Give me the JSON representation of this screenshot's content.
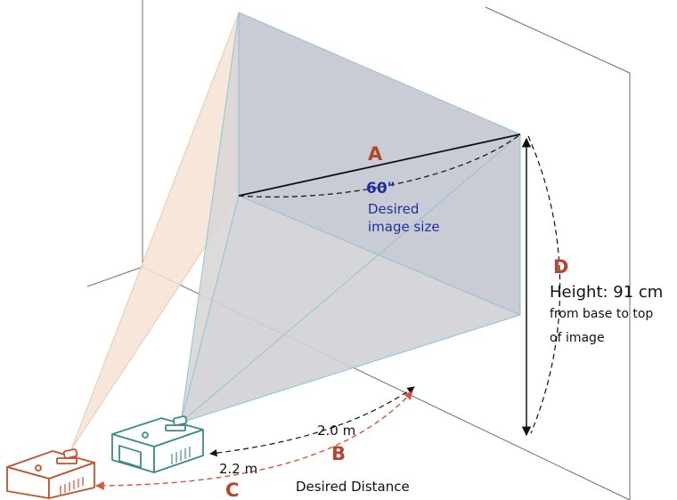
{
  "colors": {
    "screen_fill": "#c9ccd4",
    "projection_light": "#f6e3d3",
    "letter_red": "#b5462e",
    "label_blue": "#1f2f9e",
    "teal": "#3f8a90",
    "dashed_red": "#d9523a",
    "line_gray": "#6f6f6f"
  },
  "icons": {
    "near_projector": "projector-icon",
    "far_projector": "projector-icon"
  },
  "labels": {
    "a_letter": "A",
    "diagonal_value": "60\"",
    "diagonal_caption_1": "Desired",
    "diagonal_caption_2": "image size",
    "d_letter": "D",
    "height_title": "Height: 91 cm",
    "height_caption_1": "from base to top",
    "height_caption_2": "of image",
    "near_distance": "2.0 m",
    "b_letter": "B",
    "far_distance": "2.2 m",
    "c_letter": "C",
    "distance_caption": "Desired Distance"
  }
}
